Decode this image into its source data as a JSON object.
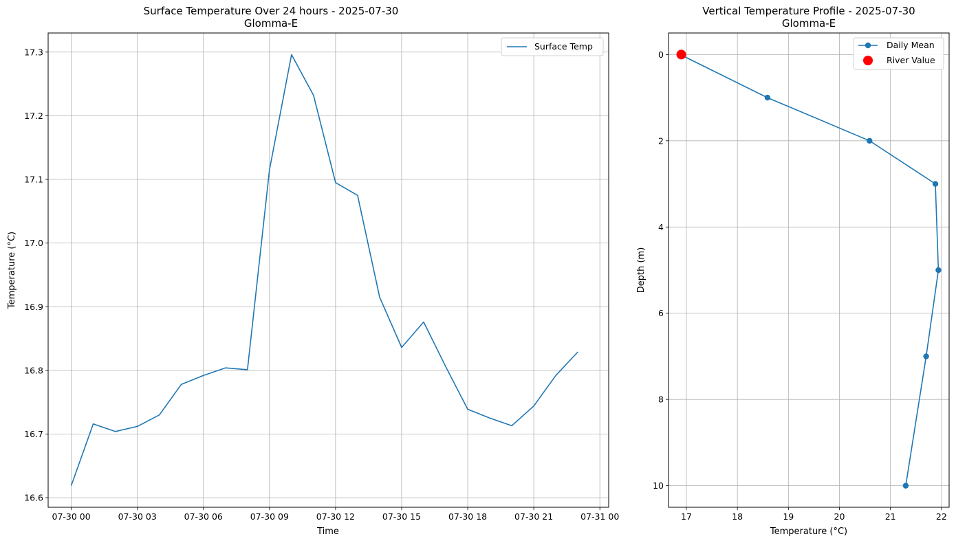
{
  "chart_data": [
    {
      "type": "line",
      "title": "Surface Temperature Over 24 hours - 2025-07-30",
      "subtitle": "Glomma-E",
      "xlabel": "Time",
      "ylabel": "Temperature (°C)",
      "x_ticks": [
        "07-30 00",
        "07-30 03",
        "07-30 06",
        "07-30 09",
        "07-30 12",
        "07-30 15",
        "07-30 18",
        "07-30 21",
        "07-31 00"
      ],
      "y_ticks": [
        "16.6",
        "16.7",
        "16.8",
        "16.9",
        "17.0",
        "17.1",
        "17.2",
        "17.3"
      ],
      "xlim": [
        -1.05,
        24.4
      ],
      "ylim": [
        16.585,
        17.33
      ],
      "grid": true,
      "legend": {
        "position": "upper-right",
        "entries": [
          "Surface Temp"
        ]
      },
      "series": [
        {
          "name": "Surface Temp",
          "color": "#1f77b4",
          "x_hours": [
            0,
            1,
            2,
            3,
            4,
            5,
            6,
            7,
            8,
            9,
            10,
            11,
            12,
            13,
            14,
            15,
            16,
            17,
            18,
            19,
            20,
            21,
            22,
            23
          ],
          "values": [
            16.619,
            16.716,
            16.704,
            16.712,
            16.73,
            16.778,
            16.792,
            16.804,
            16.801,
            17.115,
            17.296,
            17.232,
            17.095,
            17.075,
            16.915,
            16.836,
            16.876,
            16.806,
            16.739,
            16.725,
            16.713,
            16.744,
            16.792,
            16.829
          ]
        }
      ]
    },
    {
      "type": "line",
      "title": "Vertical Temperature Profile - 2025-07-30",
      "subtitle": "Glomma-E",
      "xlabel": "Temperature (°C)",
      "ylabel": "Depth (m)",
      "x_ticks": [
        "17",
        "18",
        "19",
        "20",
        "21",
        "22"
      ],
      "y_ticks": [
        "0",
        "2",
        "4",
        "6",
        "8",
        "10"
      ],
      "xlim": [
        16.65,
        22.15
      ],
      "ylim": [
        10.5,
        -0.5
      ],
      "y_inverted": true,
      "grid": true,
      "legend": {
        "position": "upper-right",
        "entries": [
          "Daily Mean",
          "River Value"
        ]
      },
      "series": [
        {
          "name": "Daily Mean",
          "color": "#1f77b4",
          "marker": "circle",
          "depth": [
            0,
            1,
            2,
            3,
            5,
            7,
            10
          ],
          "temperature": [
            16.88,
            18.59,
            20.59,
            21.88,
            21.94,
            21.7,
            21.3
          ]
        },
        {
          "name": "River Value",
          "color": "#ff0000",
          "marker": "circle",
          "depth": [
            0
          ],
          "temperature": [
            16.9
          ]
        }
      ]
    }
  ]
}
